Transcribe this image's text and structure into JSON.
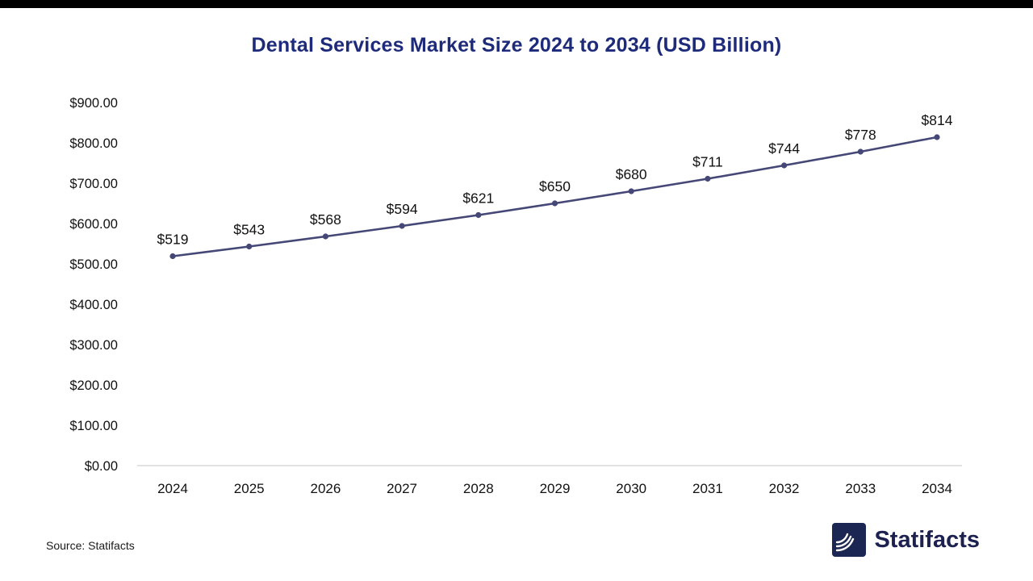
{
  "chart_data": {
    "type": "line",
    "title": "Dental Services Market Size 2024 to 2034 (USD Billion)",
    "categories": [
      "2024",
      "2025",
      "2026",
      "2027",
      "2028",
      "2029",
      "2030",
      "2031",
      "2032",
      "2033",
      "2034"
    ],
    "values": [
      519,
      543,
      568,
      594,
      621,
      650,
      680,
      711,
      744,
      778,
      814
    ],
    "point_labels": [
      "$519",
      "$543",
      "$568",
      "$594",
      "$621",
      "$650",
      "$680",
      "$711",
      "$744",
      "$778",
      "$814"
    ],
    "xlabel": "",
    "ylabel": "",
    "ylim": [
      0,
      900
    ],
    "y_ticks": [
      "$0.00",
      "$100.00",
      "$200.00",
      "$300.00",
      "$400.00",
      "$500.00",
      "$600.00",
      "$700.00",
      "$800.00",
      "$900.00"
    ],
    "grid": false,
    "legend": "none",
    "line_color": "#454776",
    "point_color": "#454776",
    "axis_line_color": "#d9d9d9",
    "label_color": "#111111",
    "title_color": "#1e2b7a"
  },
  "source": {
    "text": "Source: Statifacts"
  },
  "logo": {
    "text": "Statifacts"
  }
}
